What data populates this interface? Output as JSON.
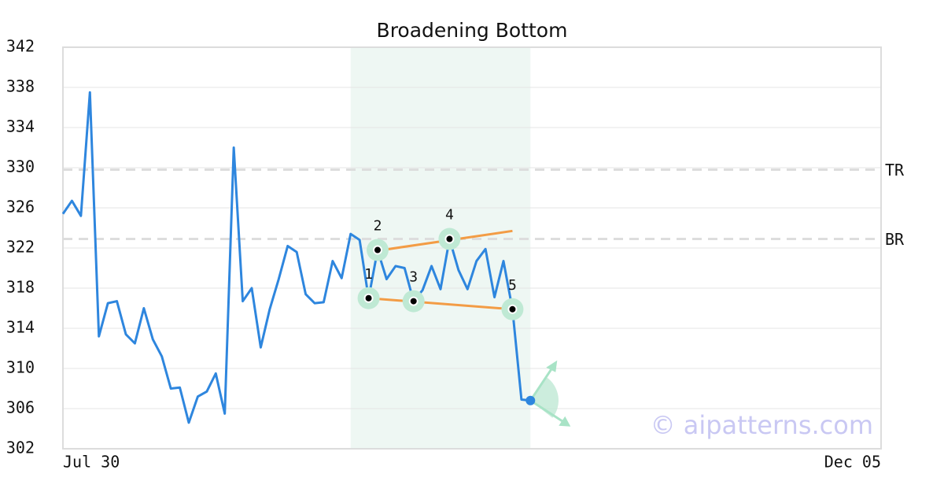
{
  "chart_data": {
    "type": "line",
    "title": "Broadening Bottom",
    "categories": [
      "Jul 30",
      null,
      null,
      null,
      null,
      null,
      null,
      null,
      null,
      null,
      null,
      null,
      null,
      null,
      null,
      null,
      null,
      null,
      null,
      null,
      null,
      null,
      null,
      null,
      null,
      null,
      null,
      null,
      null,
      null,
      null,
      null,
      null,
      null,
      null,
      null,
      null,
      null,
      null,
      null,
      null,
      null,
      null,
      null,
      null,
      null,
      null,
      null,
      null,
      null,
      null,
      null,
      null,
      null,
      null,
      null,
      null,
      null,
      null,
      null,
      null,
      null,
      null,
      null,
      null,
      null,
      null,
      null,
      null,
      null,
      null,
      null,
      null,
      null,
      null,
      null,
      null,
      null,
      null,
      null,
      null,
      null,
      null,
      null,
      null,
      null,
      null,
      null,
      null,
      null,
      null,
      "Dec 05"
    ],
    "series": [
      {
        "color": "#2e86de",
        "values": [
          325.4,
          326.7,
          325.2,
          337.5,
          313.2,
          316.5,
          316.7,
          313.4,
          312.5,
          316.0,
          312.9,
          311.2,
          308.0,
          308.1,
          304.6,
          307.2,
          307.7,
          309.5,
          305.5,
          332.0,
          316.7,
          318.0,
          312.1,
          315.9,
          318.9,
          322.2,
          321.6,
          317.4,
          316.5,
          316.6,
          320.7,
          319.0,
          323.4,
          322.8,
          317.0,
          321.8,
          318.9,
          320.2,
          320.0,
          316.7,
          317.8,
          320.2,
          317.9,
          322.9,
          319.8,
          317.9,
          320.7,
          321.9,
          317.1,
          320.7,
          315.9,
          306.9,
          306.8,
          null,
          null,
          null,
          null,
          null,
          null,
          null,
          null,
          null,
          null,
          null,
          null,
          null,
          null,
          null,
          null,
          null,
          null,
          null,
          null,
          null,
          null,
          null,
          null,
          null,
          null,
          null,
          null,
          null,
          null,
          null,
          null,
          null,
          null,
          null,
          null,
          null,
          null,
          null
        ]
      }
    ],
    "ylim": [
      302,
      342
    ],
    "yticks": [
      302,
      306,
      310,
      314,
      318,
      322,
      326,
      330,
      334,
      338,
      342
    ],
    "grid": true,
    "levels": [
      {
        "label": "TR",
        "value": 329.8
      },
      {
        "label": "BR",
        "value": 322.9
      }
    ],
    "highlight": {
      "start": 32,
      "end": 52
    },
    "pattern_points": [
      {
        "label": "1",
        "index": 34
      },
      {
        "label": "2",
        "index": 35
      },
      {
        "label": "3",
        "index": 39
      },
      {
        "label": "4",
        "index": 43
      },
      {
        "label": "5",
        "index": 50
      }
    ],
    "trendlines": [
      {
        "color": "#f39c45",
        "x": [
          34,
          50
        ],
        "values": [
          321.6,
          323.7
        ]
      },
      {
        "color": "#f39c45",
        "x": [
          34,
          50
        ],
        "values": [
          317.0,
          315.9
        ]
      }
    ],
    "watermark": "© aipatterns.com"
  }
}
